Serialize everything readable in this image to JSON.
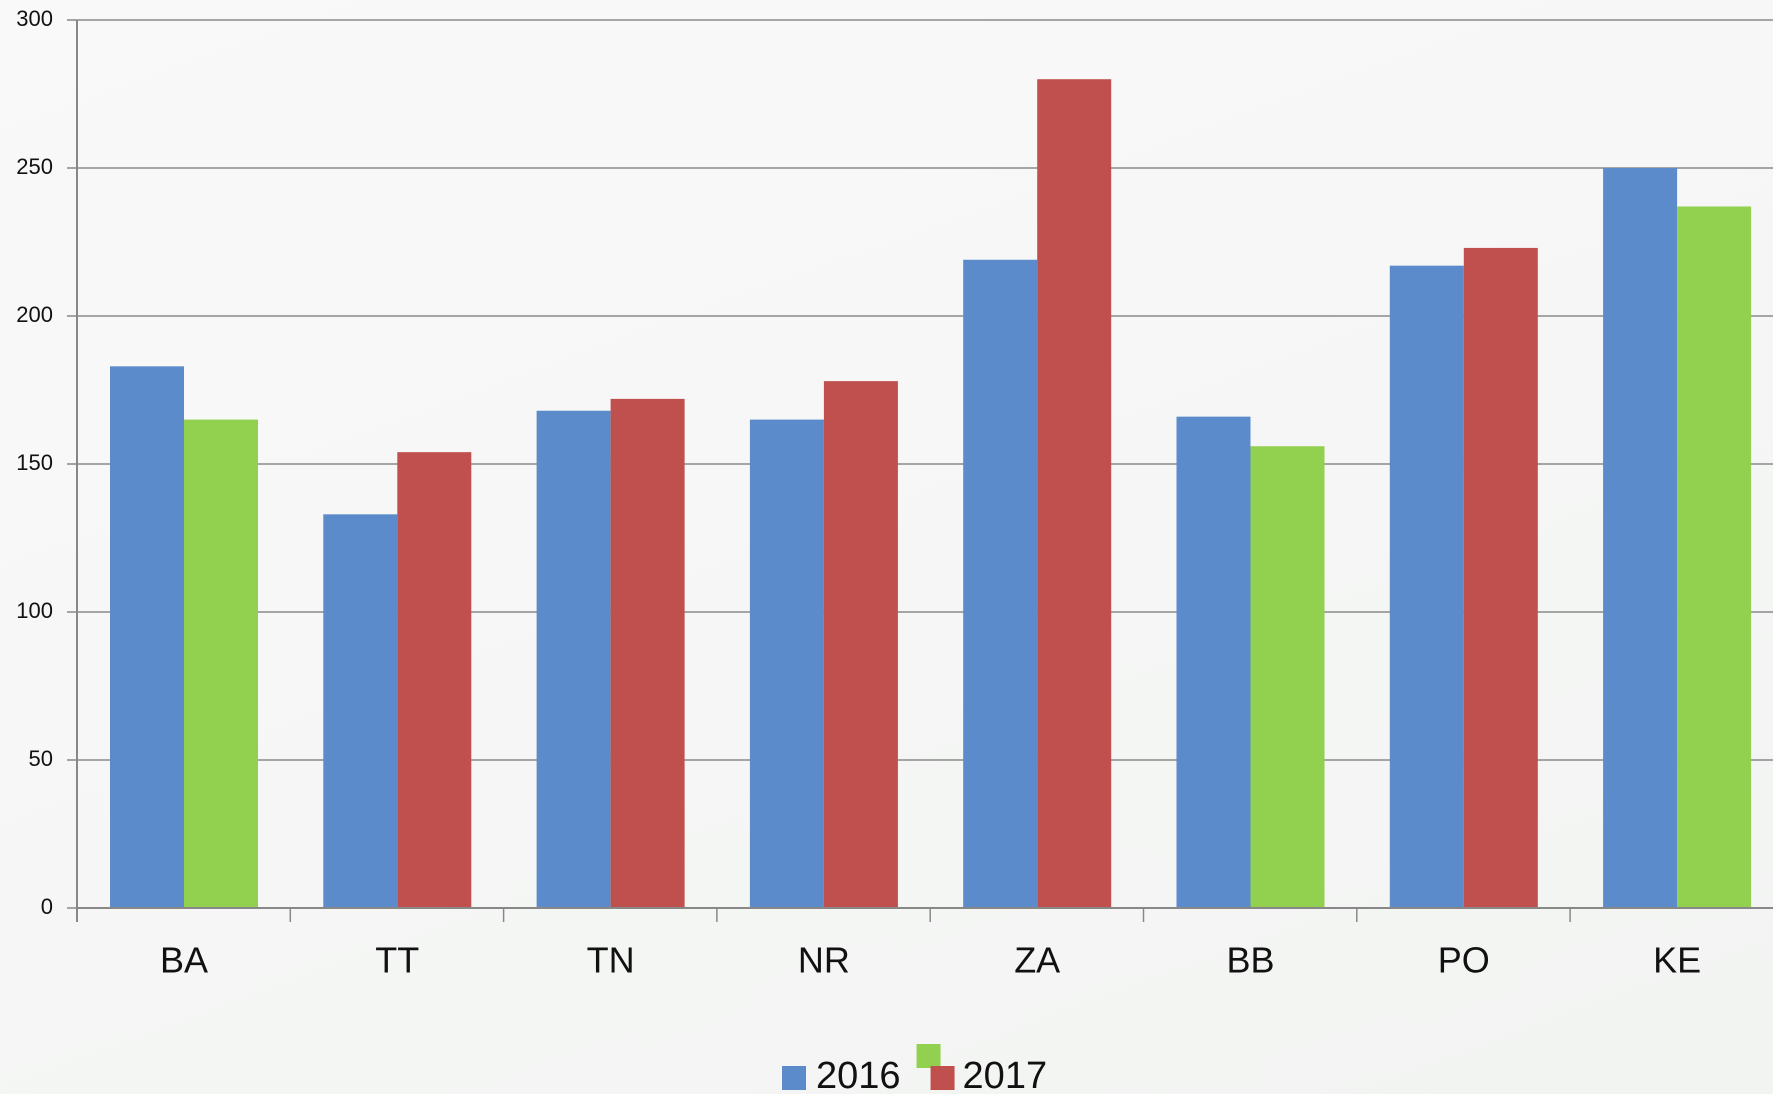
{
  "chart_data": {
    "type": "bar",
    "categories": [
      "BA",
      "TT",
      "TN",
      "NR",
      "ZA",
      "BB",
      "PO",
      "KE"
    ],
    "series": [
      {
        "name": "2016",
        "color": "#5b8bca",
        "values": [
          183,
          133,
          168,
          165,
          219,
          166,
          217,
          250
        ]
      },
      {
        "name": "2017",
        "colors": [
          "#92d050",
          "#c0504d",
          "#c0504d",
          "#c0504d",
          "#c0504d",
          "#92d050",
          "#c0504d",
          "#92d050"
        ],
        "values": [
          165,
          154,
          172,
          178,
          280,
          156,
          223,
          237
        ]
      }
    ],
    "ylim": [
      0,
      300
    ],
    "yticks": [
      0,
      50,
      100,
      150,
      200,
      250,
      300
    ],
    "grid": true,
    "legend": "bottom"
  }
}
